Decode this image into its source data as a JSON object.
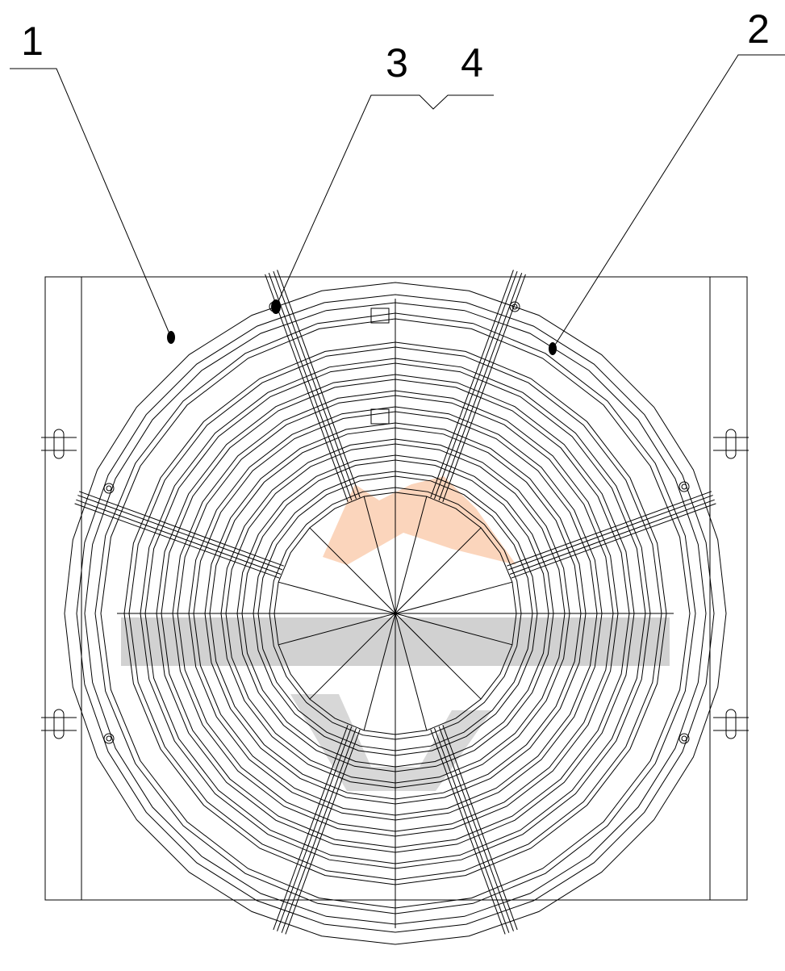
{
  "callouts": [
    {
      "label": "1"
    },
    {
      "label": "2"
    },
    {
      "label": "3"
    },
    {
      "label": "4"
    }
  ]
}
